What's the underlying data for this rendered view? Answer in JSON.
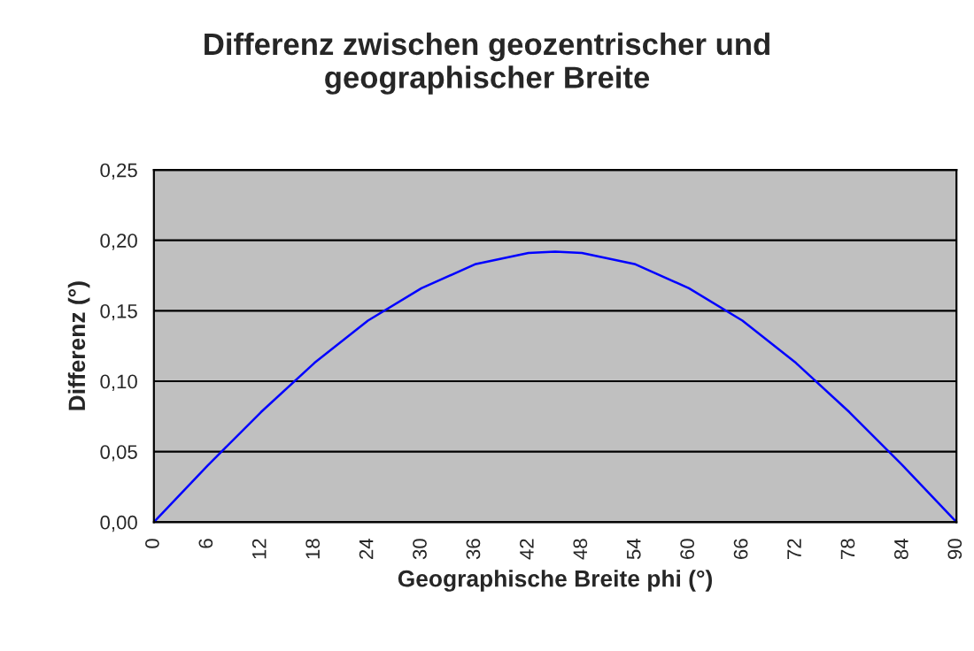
{
  "chart_data": {
    "type": "line",
    "title": "Differenz zwischen geozentrischer und\ngeographischer Breite",
    "xlabel": "Geographische Breite phi (°)",
    "ylabel": "Differenz (°)",
    "x": [
      0,
      6,
      12,
      18,
      24,
      30,
      36,
      42,
      45,
      48,
      54,
      60,
      66,
      72,
      78,
      84,
      90
    ],
    "series": [
      {
        "color": "#0000ff",
        "values": [
          0,
          0.04,
          0.078,
          0.113,
          0.143,
          0.166,
          0.183,
          0.191,
          0.192,
          0.191,
          0.183,
          0.166,
          0.143,
          0.113,
          0.078,
          0.04,
          0
        ]
      }
    ],
    "xlim": [
      0,
      90
    ],
    "xticks": [
      0,
      6,
      12,
      18,
      24,
      30,
      36,
      42,
      48,
      54,
      60,
      66,
      72,
      78,
      84,
      90
    ],
    "ylim": [
      0,
      0.25
    ],
    "yticks": [
      {
        "value": 0,
        "label": "0,00"
      },
      {
        "value": 0.05,
        "label": "0,05"
      },
      {
        "value": 0.1,
        "label": "0,10"
      },
      {
        "value": 0.15,
        "label": "0,15"
      },
      {
        "value": 0.2,
        "label": "0,20"
      },
      {
        "value": 0.25,
        "label": "0,25"
      }
    ],
    "grid": "y",
    "legend": false,
    "marker": "none",
    "line_style": "solid"
  }
}
